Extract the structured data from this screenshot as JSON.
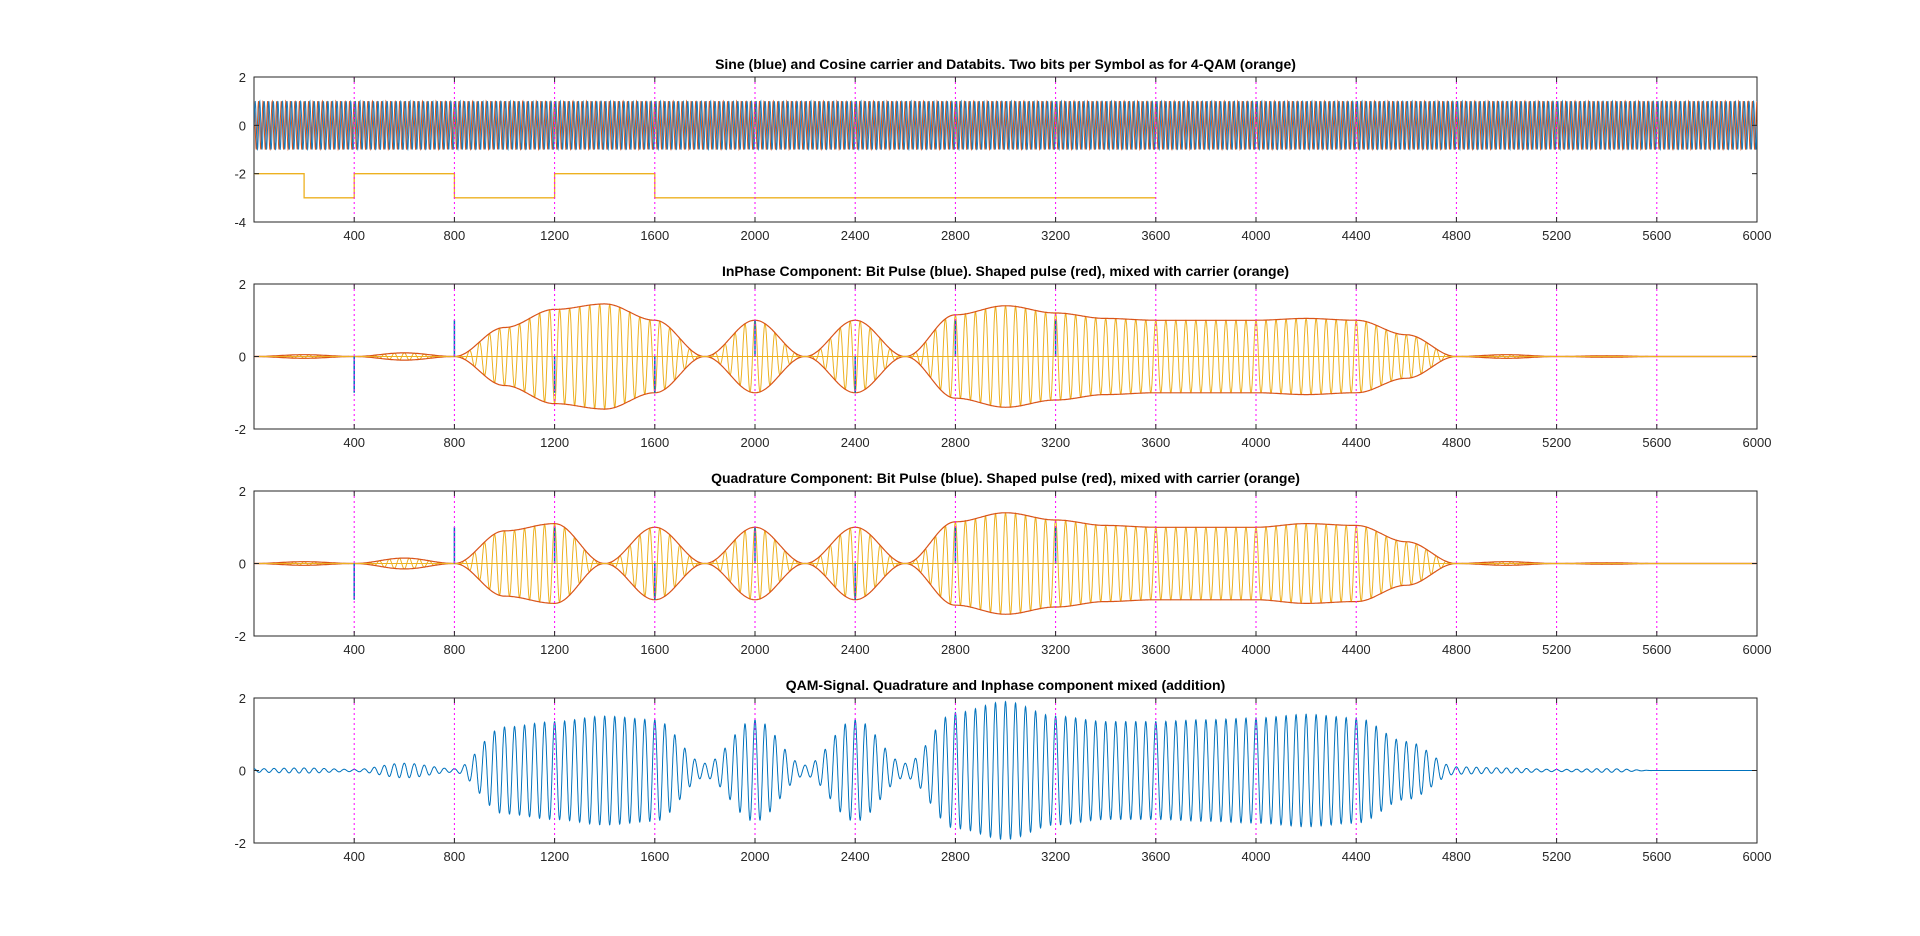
{
  "colors": {
    "blue": "#0072BD",
    "red": "#D95319",
    "orange": "#EDB120",
    "magenta": "#FF00FF",
    "axis": "#262626"
  },
  "chart_data": [
    {
      "type": "line",
      "title": "Sine (blue) and Cosine carrier and Databits. Two bits per Symbol as for 4-QAM (orange)",
      "xlim": [
        0,
        6000
      ],
      "ylim": [
        -4,
        2
      ],
      "xticks": [
        400,
        800,
        1200,
        1600,
        2000,
        2400,
        2800,
        3200,
        3600,
        4000,
        4400,
        4800,
        5200,
        5600,
        6000
      ],
      "yticks": [
        2,
        0,
        -2,
        -4
      ],
      "symbol_markers": [
        400,
        800,
        1200,
        1600,
        2000,
        2400,
        2800,
        3200,
        3600,
        4000,
        4400,
        4800,
        5200,
        5600
      ],
      "series": [
        {
          "role": "sine carrier",
          "color": "blue",
          "amplitude": 1,
          "x_range": [
            0,
            6000
          ]
        },
        {
          "role": "cosine carrier",
          "color": "red",
          "amplitude": 1,
          "x_range": [
            0,
            6000
          ]
        },
        {
          "role": "databits",
          "color": "orange",
          "step_x": [
            0,
            200,
            400,
            800,
            1200,
            1600,
            3600
          ],
          "step_y": [
            -2,
            -3,
            -2,
            -3,
            -2,
            -3
          ]
        }
      ]
    },
    {
      "type": "line",
      "title": "InPhase Component: Bit Pulse (blue). Shaped pulse (red), mixed with carrier (orange)",
      "xlim": [
        0,
        6000
      ],
      "ylim": [
        -2,
        2
      ],
      "xticks": [
        400,
        800,
        1200,
        1600,
        2000,
        2400,
        2800,
        3200,
        3600,
        4000,
        4400,
        4800,
        5200,
        5600,
        6000
      ],
      "yticks": [
        2,
        0,
        -2
      ],
      "symbol_markers": [
        400,
        800,
        1200,
        1600,
        2000,
        2400,
        2800,
        3200,
        3600,
        4000,
        4400,
        4800,
        5200,
        5600
      ],
      "envelope_x": [
        0,
        200,
        400,
        600,
        800,
        1000,
        1200,
        1400,
        1600,
        1800,
        2000,
        2200,
        2400,
        2600,
        2800,
        3000,
        3200,
        3400,
        3600,
        3800,
        4000,
        4200,
        4400,
        4600,
        4800,
        5000,
        5200,
        5400,
        5600,
        5800,
        6000
      ],
      "envelope_y": [
        0,
        -0.05,
        0,
        0.1,
        0,
        -0.8,
        -1.3,
        -1.45,
        -1.0,
        0,
        1.0,
        0,
        -1.0,
        0,
        1.15,
        1.4,
        1.2,
        1.05,
        1.0,
        1.0,
        1.0,
        1.05,
        1.0,
        0.6,
        0,
        -0.05,
        0,
        0.02,
        0,
        0,
        0
      ],
      "bit_pulses": [
        {
          "x": 400,
          "y": -1
        },
        {
          "x": 800,
          "y": 1
        },
        {
          "x": 1200,
          "y": -1
        },
        {
          "x": 1600,
          "y": -1
        },
        {
          "x": 2000,
          "y": 1
        },
        {
          "x": 2400,
          "y": -1
        },
        {
          "x": 2800,
          "y": 1
        },
        {
          "x": 3200,
          "y": 1
        }
      ],
      "carrier_cycles": 150
    },
    {
      "type": "line",
      "title": "Quadrature Component: Bit Pulse (blue). Shaped pulse (red), mixed with carrier (orange)",
      "xlim": [
        0,
        6000
      ],
      "ylim": [
        -2,
        2
      ],
      "xticks": [
        400,
        800,
        1200,
        1600,
        2000,
        2400,
        2800,
        3200,
        3600,
        4000,
        4400,
        4800,
        5200,
        5600,
        6000
      ],
      "yticks": [
        2,
        0,
        -2
      ],
      "symbol_markers": [
        400,
        800,
        1200,
        1600,
        2000,
        2400,
        2800,
        3200,
        3600,
        4000,
        4400,
        4800,
        5200,
        5600
      ],
      "envelope_x": [
        0,
        200,
        400,
        600,
        800,
        1000,
        1200,
        1400,
        1600,
        1800,
        2000,
        2200,
        2400,
        2600,
        2800,
        3000,
        3200,
        3400,
        3600,
        3800,
        4000,
        4200,
        4400,
        4600,
        4800,
        5000,
        5200,
        5400,
        5600,
        5800,
        6000
      ],
      "envelope_y": [
        0,
        0.05,
        0,
        -0.15,
        0,
        0.9,
        1.1,
        0,
        -1.0,
        0,
        1.0,
        0,
        -1.0,
        0,
        1.15,
        1.4,
        1.2,
        1.05,
        1.0,
        1.0,
        1.0,
        1.1,
        1.05,
        0.6,
        0,
        -0.05,
        0,
        0.02,
        0,
        0,
        0
      ],
      "bit_pulses": [
        {
          "x": 400,
          "y": -1
        },
        {
          "x": 800,
          "y": 1
        },
        {
          "x": 1200,
          "y": 1
        },
        {
          "x": 1600,
          "y": -1
        },
        {
          "x": 2000,
          "y": 1
        },
        {
          "x": 2400,
          "y": -1
        },
        {
          "x": 2800,
          "y": 1
        },
        {
          "x": 3200,
          "y": 1
        }
      ],
      "carrier_cycles": 150
    },
    {
      "type": "line",
      "title": "QAM-Signal. Quadrature and Inphase component mixed (addition)",
      "xlim": [
        0,
        6000
      ],
      "ylim": [
        -2,
        2
      ],
      "xticks": [
        400,
        800,
        1200,
        1600,
        2000,
        2400,
        2800,
        3200,
        3600,
        4000,
        4400,
        4800,
        5200,
        5600,
        6000
      ],
      "yticks": [
        2,
        0,
        -2
      ],
      "symbol_markers": [
        400,
        800,
        1200,
        1600,
        2000,
        2400,
        2800,
        3200,
        3600,
        4000,
        4400,
        4800,
        5200,
        5600
      ],
      "envelope_x": [
        0,
        200,
        400,
        600,
        800,
        1000,
        1200,
        1400,
        1600,
        1800,
        2000,
        2200,
        2400,
        2600,
        2800,
        3000,
        3200,
        3400,
        3600,
        3800,
        4000,
        4200,
        4400,
        4600,
        4800,
        5000,
        5200,
        5400,
        5600,
        5800,
        6000
      ],
      "envelope_y": [
        0.05,
        0.07,
        0.03,
        0.2,
        0.05,
        1.2,
        1.35,
        1.5,
        1.4,
        0.2,
        1.4,
        0.15,
        1.4,
        0.2,
        1.6,
        1.9,
        1.5,
        1.35,
        1.35,
        1.4,
        1.45,
        1.55,
        1.45,
        0.8,
        0.1,
        0.07,
        0.03,
        0.05,
        0.0,
        0.0,
        0.0
      ],
      "carrier_cycles": 150
    }
  ]
}
